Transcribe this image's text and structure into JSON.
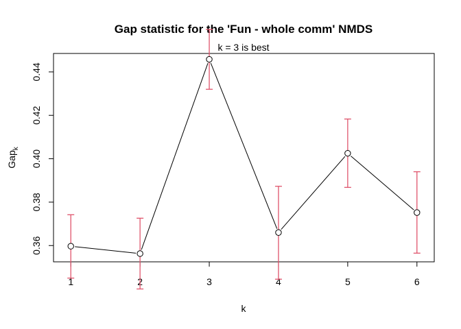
{
  "chart_data": {
    "type": "line",
    "title": "Gap statistic for the 'Fun - whole comm' NMDS",
    "subtitle": "k = 3 is best",
    "xlabel": "k",
    "ylabel_main": "Gap",
    "ylabel_sub": "k",
    "x": [
      1,
      2,
      3,
      4,
      5,
      6
    ],
    "y": [
      0.3597,
      0.3563,
      0.4458,
      0.366,
      0.4025,
      0.3752
    ],
    "err_low": [
      0.345,
      0.34,
      0.432,
      0.3445,
      0.3868,
      0.3565
    ],
    "err_high": [
      0.3742,
      0.3726,
      0.4596,
      0.3873,
      0.4183,
      0.394
    ],
    "xticks": [
      "1",
      "2",
      "3",
      "4",
      "5",
      "6"
    ],
    "yticks": [
      "0.36",
      "0.38",
      "0.40",
      "0.42",
      "0.44"
    ],
    "ytick_values": [
      0.36,
      0.38,
      0.4,
      0.42,
      0.44
    ],
    "xlim": [
      0.75,
      6.25
    ],
    "ylim": [
      0.3525,
      0.4485
    ],
    "grid": false,
    "line_color": "#000000",
    "errorbar_color": "#DF536B"
  }
}
